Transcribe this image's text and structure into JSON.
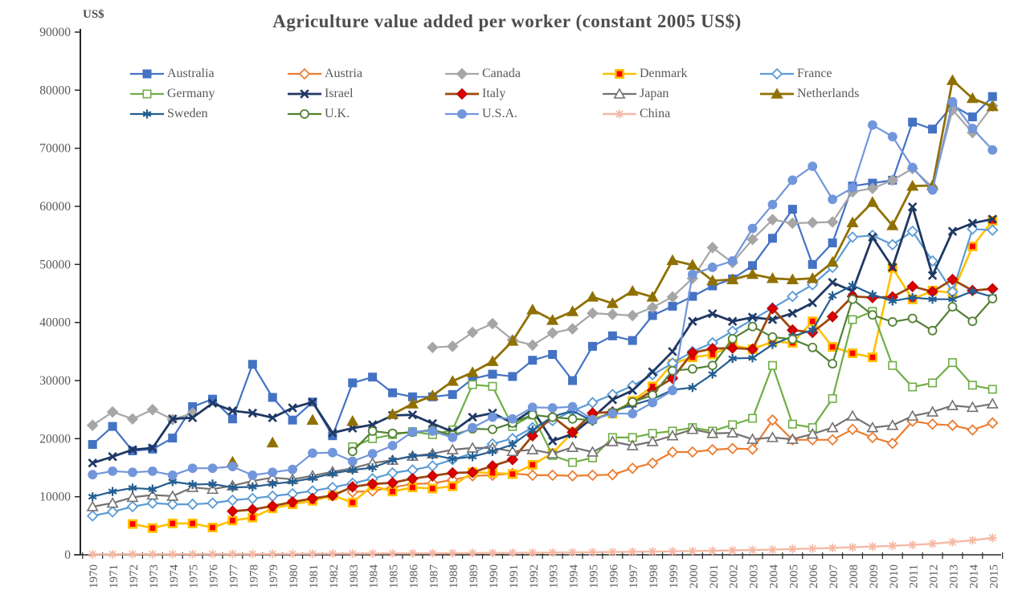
{
  "chart_data": {
    "type": "line",
    "title": "Agriculture value added per worker (constant 2005 US$)",
    "ylabel": "US$",
    "ylim": [
      0,
      90000
    ],
    "yticks": [
      0,
      10000,
      20000,
      30000,
      40000,
      50000,
      60000,
      70000,
      80000,
      90000
    ],
    "grid": false,
    "legend_position": "top-inside",
    "x": [
      1970,
      1971,
      1972,
      1973,
      1974,
      1975,
      1976,
      1977,
      1978,
      1979,
      1980,
      1981,
      1982,
      1983,
      1984,
      1985,
      1986,
      1987,
      1988,
      1989,
      1990,
      1991,
      1992,
      1993,
      1994,
      1995,
      1996,
      1997,
      1998,
      1999,
      2000,
      2001,
      2002,
      2003,
      2004,
      2005,
      2006,
      2007,
      2008,
      2009,
      2010,
      2011,
      2012,
      2013,
      2014,
      2015
    ],
    "series": [
      {
        "name": "Australia",
        "color": "#4472C4",
        "marker": "square",
        "fill": "filled",
        "marker_color": "#4472C4",
        "marker_stroke": "#4472C4",
        "width": 2.2,
        "values": [
          19000,
          22100,
          17900,
          18200,
          20100,
          25500,
          26800,
          23400,
          32800,
          27100,
          23200,
          26300,
          20500,
          29600,
          30600,
          27900,
          27200,
          27200,
          27600,
          30300,
          31100,
          30700,
          33500,
          34500,
          30000,
          35900,
          37700,
          36900,
          41200,
          42800,
          44500,
          46300,
          47500,
          49800,
          54500,
          59500,
          50000,
          53700,
          63500,
          64000,
          64500,
          74500,
          73300,
          77400,
          75400,
          78900
        ]
      },
      {
        "name": "Austria",
        "color": "#ED7D31",
        "marker": "diamond",
        "fill": "open",
        "marker_color": "#FFFFFF",
        "marker_stroke": "#ED7D31",
        "width": 2.2,
        "values": [
          null,
          null,
          null,
          null,
          null,
          null,
          null,
          null,
          null,
          null,
          null,
          null,
          null,
          10800,
          11000,
          11600,
          12200,
          12300,
          12900,
          13600,
          13700,
          14000,
          13700,
          13700,
          13600,
          13700,
          13800,
          14900,
          15800,
          17700,
          17700,
          18100,
          18300,
          18200,
          23200,
          19800,
          19800,
          19800,
          21600,
          20200,
          19200,
          23000,
          22500,
          22300,
          21500,
          22700
        ]
      },
      {
        "name": "Canada",
        "color": "#A6A6A6",
        "marker": "diamond",
        "fill": "filled",
        "marker_color": "#A6A6A6",
        "marker_stroke": "#A6A6A6",
        "width": 2.2,
        "values": [
          22300,
          24600,
          23400,
          25000,
          23300,
          24400,
          null,
          null,
          null,
          null,
          null,
          null,
          null,
          null,
          null,
          null,
          null,
          35700,
          35900,
          38300,
          39800,
          37000,
          36100,
          38200,
          38900,
          41600,
          41400,
          41200,
          42600,
          44400,
          47600,
          52900,
          50300,
          54300,
          57700,
          57100,
          57200,
          57300,
          62500,
          63100,
          64500,
          66500,
          63300,
          76600,
          72700,
          77300
        ]
      },
      {
        "name": "Denmark",
        "color": "#FFC000",
        "marker": "square",
        "fill": "filled",
        "marker_color": "#FF0000",
        "marker_stroke": "#FFC000",
        "width": 2.6,
        "values": [
          null,
          null,
          5300,
          4600,
          5400,
          5400,
          4700,
          5900,
          6400,
          8000,
          8700,
          9300,
          10200,
          9000,
          11900,
          10900,
          11600,
          11400,
          11800,
          14200,
          14100,
          13900,
          15500,
          17500,
          21100,
          23500,
          24300,
          26500,
          29000,
          32900,
          34000,
          34500,
          36100,
          35400,
          36700,
          36500,
          40200,
          35800,
          34700,
          34000,
          49400,
          44000,
          45500,
          45100,
          53100,
          57500
        ]
      },
      {
        "name": "France",
        "color": "#5B9BD5",
        "marker": "diamond",
        "fill": "open",
        "marker_color": "#FFFFFF",
        "marker_stroke": "#5B9BD5",
        "width": 2.2,
        "values": [
          6700,
          7400,
          8300,
          8900,
          8700,
          8700,
          8900,
          9400,
          9700,
          10100,
          10500,
          11000,
          11600,
          12300,
          13100,
          14100,
          14600,
          15300,
          16400,
          17500,
          19100,
          20000,
          21900,
          23100,
          24800,
          26200,
          27600,
          29100,
          31000,
          33000,
          35000,
          36500,
          38500,
          40500,
          42500,
          44500,
          46500,
          49500,
          54700,
          55000,
          53400,
          55700,
          50600,
          45300,
          56100,
          55900
        ]
      },
      {
        "name": "Germany",
        "color": "#70AD47",
        "marker": "square",
        "fill": "open",
        "marker_color": "#FFFFFF",
        "marker_stroke": "#70AD47",
        "width": 2.2,
        "values": [
          null,
          null,
          null,
          null,
          null,
          null,
          null,
          null,
          null,
          null,
          null,
          null,
          null,
          18600,
          20000,
          20700,
          21200,
          20700,
          21500,
          29300,
          29000,
          22100,
          24100,
          17100,
          15900,
          16700,
          20200,
          20200,
          20900,
          21300,
          21900,
          21300,
          22400,
          23500,
          32600,
          22500,
          21900,
          26900,
          40500,
          41900,
          32600,
          28900,
          29600,
          33100,
          29200,
          28500
        ]
      },
      {
        "name": "Israel",
        "color": "#1F3864",
        "marker": "x",
        "fill": "line",
        "marker_color": "#1F3864",
        "marker_stroke": "#1F3864",
        "width": 2.8,
        "values": [
          15800,
          16900,
          18100,
          18400,
          23400,
          23600,
          26100,
          24800,
          24400,
          23600,
          25300,
          26300,
          21000,
          21800,
          22400,
          24000,
          24100,
          22600,
          21200,
          23700,
          24400,
          22700,
          25000,
          19600,
          20800,
          23600,
          26700,
          28300,
          31500,
          35000,
          40200,
          41500,
          40200,
          40900,
          40500,
          41600,
          43400,
          46900,
          45400,
          54700,
          49500,
          59900,
          48100,
          55700,
          57100,
          57800
        ]
      },
      {
        "name": "Italy",
        "color": "#9E480E",
        "marker": "diamond",
        "fill": "filled",
        "marker_color": "#E00000",
        "marker_stroke": "#C00000",
        "width": 2.8,
        "values": [
          null,
          null,
          null,
          null,
          null,
          null,
          null,
          7500,
          7800,
          8400,
          9100,
          9700,
          10200,
          11700,
          12200,
          12400,
          13100,
          13600,
          14100,
          14200,
          15300,
          16400,
          20500,
          23800,
          21100,
          24400,
          24600,
          26100,
          28300,
          30400,
          34800,
          35500,
          35600,
          35400,
          42400,
          38700,
          38300,
          41000,
          44500,
          44300,
          44400,
          46200,
          45300,
          47400,
          45500,
          45800
        ]
      },
      {
        "name": "Japan",
        "color": "#767171",
        "marker": "triangle",
        "fill": "open",
        "marker_color": "#FFFFFF",
        "marker_stroke": "#767171",
        "width": 2.2,
        "values": [
          8300,
          8900,
          9900,
          10300,
          10100,
          11600,
          11300,
          11900,
          12700,
          13300,
          13000,
          13600,
          14300,
          14900,
          15800,
          16300,
          17000,
          17400,
          18100,
          18400,
          18400,
          17800,
          18100,
          17400,
          18500,
          17700,
          19500,
          18800,
          19500,
          20500,
          21600,
          20900,
          21000,
          19900,
          20200,
          19900,
          20800,
          21900,
          23900,
          21900,
          22300,
          23900,
          24600,
          25700,
          25400,
          26000
        ]
      },
      {
        "name": "Netherlands",
        "color": "#8F7000",
        "marker": "triangle",
        "fill": "filled",
        "marker_color": "#8F7000",
        "marker_stroke": "#8F7000",
        "width": 2.8,
        "values": [
          null,
          null,
          null,
          null,
          null,
          null,
          null,
          16000,
          null,
          19300,
          null,
          23200,
          null,
          23000,
          null,
          24200,
          26000,
          27400,
          29900,
          31400,
          33300,
          36800,
          42200,
          40400,
          41900,
          44400,
          43300,
          45400,
          44400,
          50700,
          49900,
          47200,
          47400,
          48300,
          47600,
          47400,
          47600,
          50400,
          57200,
          60700,
          56700,
          63500,
          63600,
          81700,
          78600,
          77200
        ]
      },
      {
        "name": "Sweden",
        "color": "#255E91",
        "marker": "star6",
        "fill": "line",
        "marker_color": "#255E91",
        "marker_stroke": "#255E91",
        "width": 2.2,
        "values": [
          10000,
          10900,
          11500,
          11300,
          12600,
          12100,
          12200,
          11600,
          11700,
          12200,
          12600,
          13200,
          14000,
          14600,
          15000,
          16300,
          17000,
          17200,
          16500,
          16900,
          17800,
          19000,
          21500,
          23800,
          24800,
          23000,
          24700,
          25800,
          26800,
          28400,
          28800,
          31100,
          33800,
          33900,
          36200,
          37600,
          38700,
          44600,
          46400,
          44800,
          43700,
          44300,
          44000,
          44000,
          45400,
          44400
        ]
      },
      {
        "name": "U.K.",
        "color": "#538135",
        "marker": "circle",
        "fill": "open",
        "marker_color": "#FFFFFF",
        "marker_stroke": "#538135",
        "width": 2.2,
        "values": [
          null,
          null,
          null,
          null,
          null,
          null,
          null,
          null,
          null,
          null,
          null,
          null,
          null,
          17800,
          21300,
          20900,
          21100,
          21500,
          20600,
          21700,
          21600,
          22700,
          24100,
          23700,
          23400,
          23200,
          24500,
          26300,
          27500,
          31700,
          32000,
          32600,
          37200,
          39300,
          37500,
          37100,
          35700,
          32900,
          44000,
          41300,
          40100,
          40700,
          38600,
          42700,
          40200,
          44100
        ]
      },
      {
        "name": "U.S.A.",
        "color": "#7296DB",
        "marker": "circle",
        "fill": "filled",
        "marker_color": "#7296DB",
        "marker_stroke": "#7296DB",
        "width": 2.2,
        "values": [
          13800,
          14400,
          14200,
          14400,
          13700,
          14900,
          14900,
          15200,
          13700,
          14200,
          14700,
          17500,
          17600,
          16100,
          17400,
          18800,
          21200,
          21300,
          20200,
          21900,
          23700,
          23400,
          25400,
          25300,
          25500,
          23300,
          24300,
          24300,
          26200,
          28300,
          48300,
          49500,
          50600,
          56200,
          60300,
          64500,
          66900,
          61200,
          63200,
          74000,
          72000,
          66700,
          62800,
          78000,
          73400,
          69700
        ]
      },
      {
        "name": "China",
        "color": "#F4B9A5",
        "marker": "asterisk8",
        "fill": "line",
        "marker_color": "#F4B9A5",
        "marker_stroke": "#F4B9A5",
        "width": 2.4,
        "values": [
          95,
          100,
          105,
          110,
          115,
          120,
          130,
          135,
          145,
          155,
          165,
          175,
          190,
          205,
          220,
          235,
          250,
          265,
          285,
          300,
          315,
          335,
          360,
          385,
          415,
          445,
          480,
          515,
          555,
          590,
          650,
          700,
          760,
          820,
          890,
          1000,
          1080,
          1180,
          1300,
          1420,
          1550,
          1700,
          1900,
          2200,
          2500,
          2900
        ]
      }
    ]
  }
}
